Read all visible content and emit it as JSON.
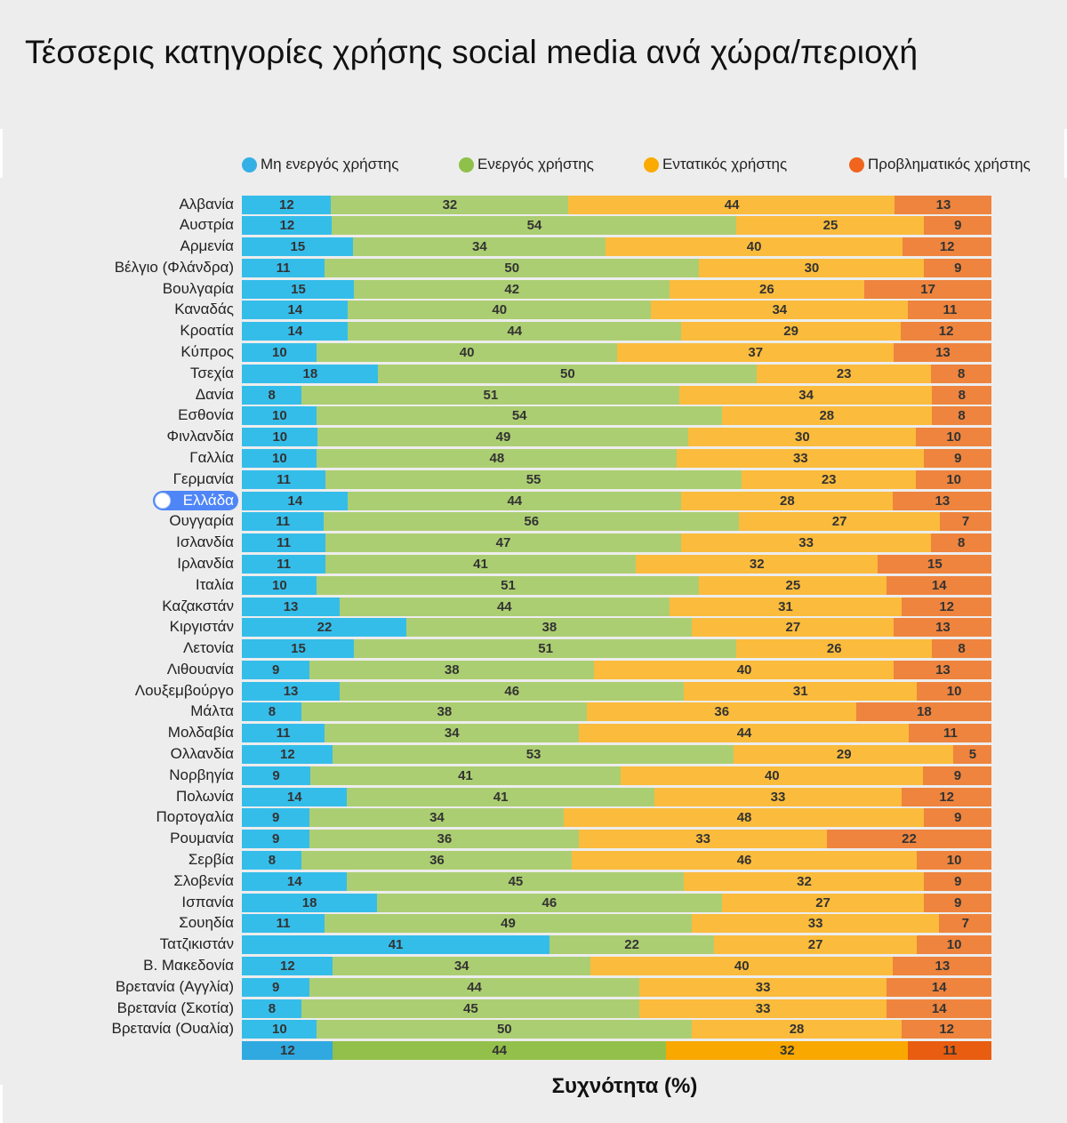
{
  "title": "Τέσσερις κατηγορίες χρήσης social media ανά χώρα/περιοχή",
  "chart_data": {
    "type": "bar",
    "orientation": "horizontal",
    "stacked": true,
    "normalized": true,
    "title": "Τέσσερις κατηγορίες χρήσης social media ανά χώρα/περιοχή",
    "xlabel": "Συχνότητα (%)",
    "ylabel": "",
    "legend_position": "top",
    "grid": false,
    "highlighted_category": "Ελλάδα",
    "categories": [
      "Αλβανία",
      "Αυστρία",
      "Αρμενία",
      "Βέλγιο (Φλάνδρα)",
      "Βουλγαρία",
      "Καναδάς",
      "Κροατία",
      "Κύπρος",
      "Τσεχία",
      "Δανία",
      "Εσθονία",
      "Φινλανδία",
      "Γαλλία",
      "Γερμανία",
      "Ελλάδα",
      "Ουγγαρία",
      "Ισλανδία",
      "Ιρλανδία",
      "Ιταλία",
      "Καζακστάν",
      "Κιργιστάν",
      "Λετονία",
      "Λιθουανία",
      "Λουξεμβούργο",
      "Μάλτα",
      "Μολδαβία",
      "Ολλανδία",
      "Νορβηγία",
      "Πολωνία",
      "Πορτογαλία",
      "Ρουμανία",
      "Σερβία",
      "Σλοβενία",
      "Ισπανία",
      "Σουηδία",
      "Τατζικιστάν",
      "Β. Μακεδονία",
      "Βρετανία (Αγγλία)",
      "Βρετανία (Σκοτία)",
      "Βρετανία (Ουαλία)",
      ""
    ],
    "series": [
      {
        "name": "Μη ενεργός χρήστης",
        "color": "#35bdea",
        "total_color": "#2fa9e0",
        "values": [
          12,
          12,
          15,
          11,
          15,
          14,
          14,
          10,
          18,
          8,
          10,
          10,
          10,
          11,
          14,
          11,
          11,
          11,
          10,
          13,
          22,
          15,
          9,
          13,
          8,
          11,
          12,
          9,
          14,
          9,
          9,
          8,
          14,
          18,
          11,
          41,
          12,
          9,
          8,
          10,
          12
        ]
      },
      {
        "name": "Ενεργός χρήστης",
        "color": "#acce72",
        "total_color": "#93c04a",
        "values": [
          32,
          54,
          34,
          50,
          42,
          40,
          44,
          40,
          50,
          51,
          54,
          49,
          48,
          55,
          44,
          56,
          47,
          41,
          51,
          44,
          38,
          51,
          38,
          46,
          38,
          34,
          53,
          41,
          41,
          34,
          36,
          36,
          45,
          46,
          49,
          22,
          34,
          44,
          45,
          50,
          44
        ]
      },
      {
        "name": "Εντατικός χρήστης",
        "color": "#fbbb3c",
        "total_color": "#f9a800",
        "values": [
          44,
          25,
          40,
          30,
          26,
          34,
          29,
          37,
          23,
          34,
          28,
          30,
          33,
          23,
          28,
          27,
          33,
          32,
          25,
          31,
          27,
          26,
          40,
          31,
          36,
          44,
          29,
          40,
          33,
          48,
          33,
          46,
          32,
          27,
          33,
          27,
          40,
          33,
          33,
          28,
          32
        ]
      },
      {
        "name": "Προβληματικός χρήστης",
        "color": "#ee843e",
        "total_color": "#e85d10",
        "values": [
          13,
          9,
          12,
          9,
          17,
          11,
          12,
          13,
          8,
          8,
          8,
          10,
          9,
          10,
          13,
          7,
          8,
          15,
          14,
          12,
          13,
          8,
          13,
          10,
          18,
          11,
          5,
          9,
          12,
          9,
          22,
          10,
          9,
          9,
          7,
          10,
          13,
          14,
          14,
          12,
          11
        ]
      }
    ]
  }
}
